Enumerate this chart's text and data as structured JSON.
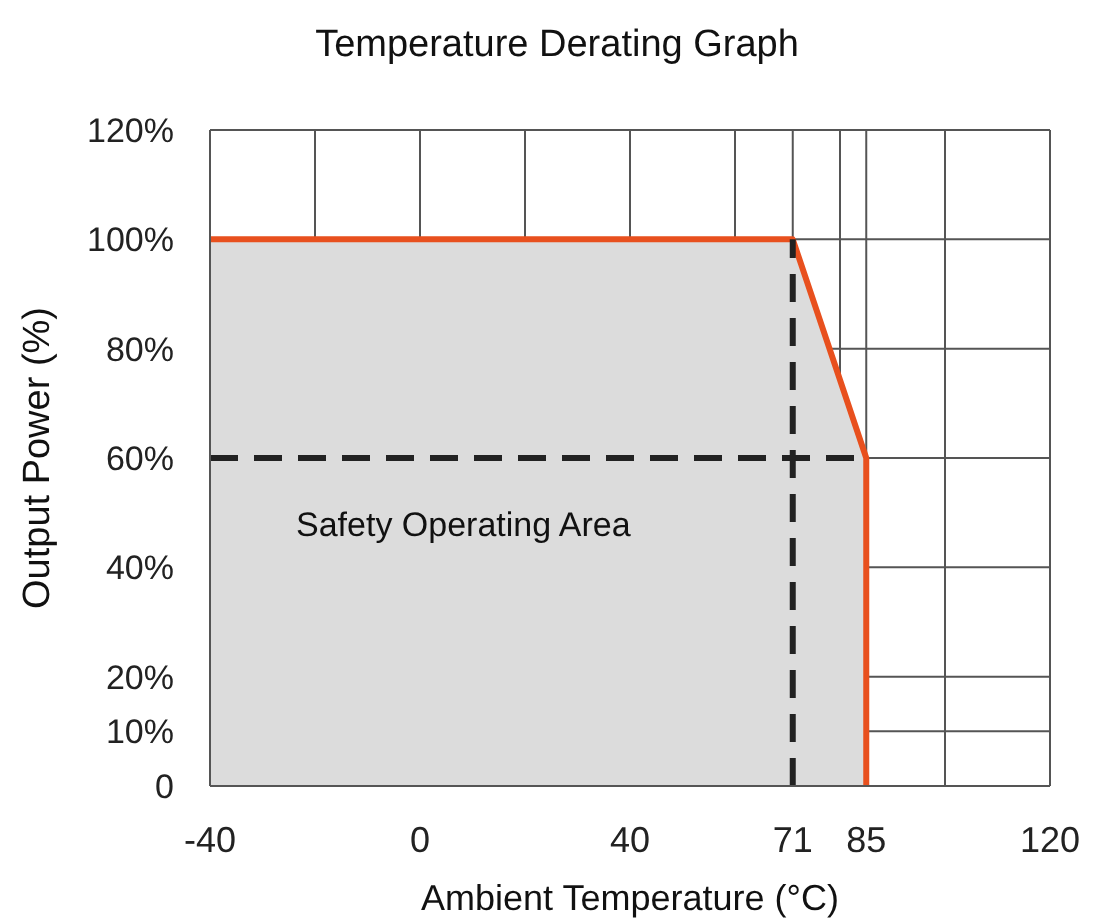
{
  "chart_data": {
    "type": "area",
    "title": "Temperature Derating Graph",
    "xlabel": "Ambient Temperature (°C)",
    "ylabel": "Output Power (%)",
    "series": [
      {
        "color": "#e8501e",
        "x": [
          -40,
          71,
          85,
          85
        ],
        "values": [
          100,
          100,
          60,
          0
        ]
      },
      {
        "type": "line",
        "color": "#222222",
        "line_style": "dashed",
        "x": [
          -40,
          85
        ],
        "values": [
          60,
          60
        ]
      },
      {
        "type": "line",
        "color": "#222222",
        "line_style": "dashed",
        "x": [
          71,
          71
        ],
        "values": [
          0,
          100
        ]
      }
    ],
    "annotations": [
      "Safety Operating Area"
    ],
    "xlim": [
      -40,
      120
    ],
    "ylim": [
      0,
      120
    ],
    "xticks": [
      -40,
      {
        "value": -20,
        "label": null
      },
      0,
      {
        "value": 20,
        "label": null
      },
      40,
      {
        "value": 60,
        "label": null
      },
      71,
      {
        "value": 80,
        "label": null
      },
      85,
      {
        "value": 100,
        "label": null
      },
      120
    ],
    "yticks": [
      {
        "value": 0,
        "label": "0"
      },
      {
        "value": 10,
        "label": "10%"
      },
      {
        "value": 20,
        "label": "20%"
      },
      {
        "value": 40,
        "label": "40%"
      },
      {
        "value": 60,
        "label": "60%"
      },
      {
        "value": 80,
        "label": "80%"
      },
      {
        "value": 100,
        "label": "100%"
      },
      {
        "value": 120,
        "label": "120%"
      }
    ],
    "grid": true,
    "marker": "none"
  }
}
